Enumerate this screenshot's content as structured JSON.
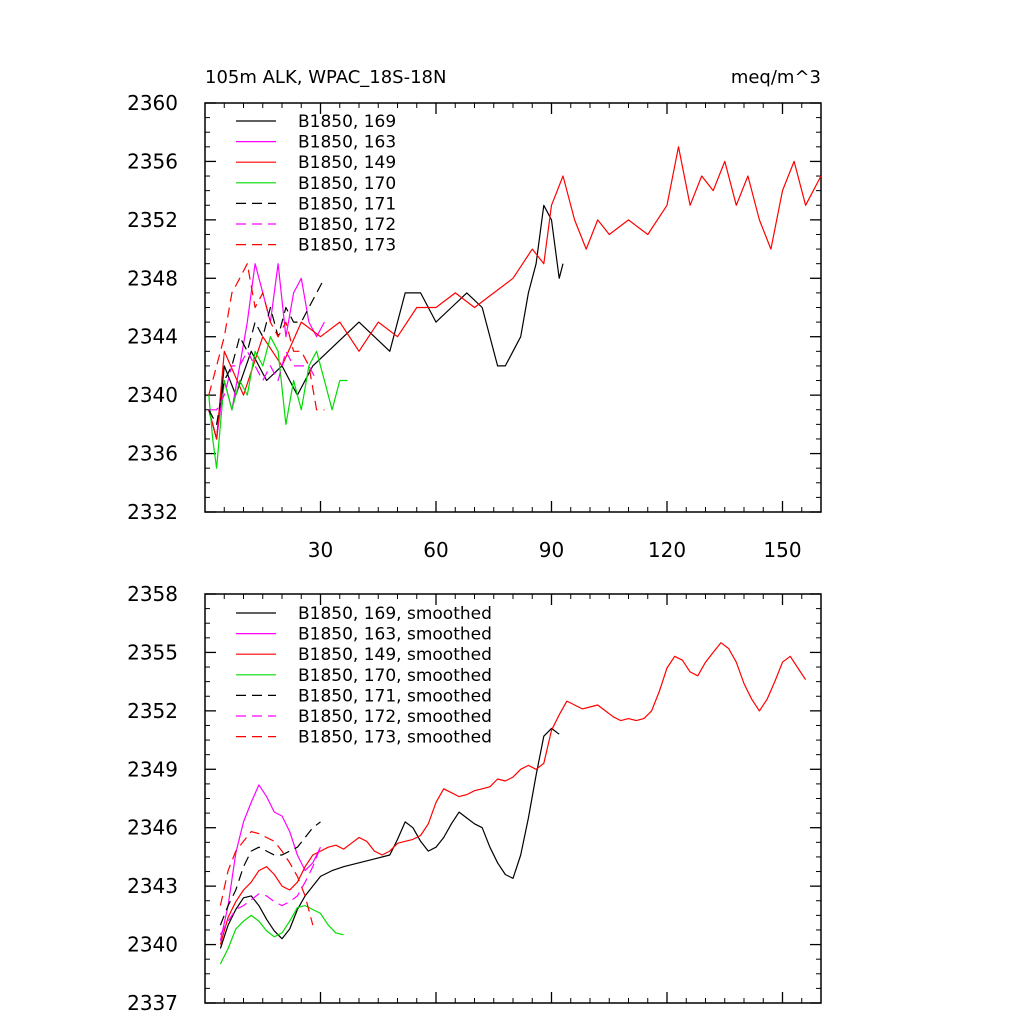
{
  "chart_data": [
    {
      "type": "line",
      "title_left": "105m ALK, WPAC_18S-18N",
      "title_right": "meq/m^3",
      "xlabel": "",
      "ylabel": "",
      "xlim": [
        0,
        160
      ],
      "ylim": [
        2332,
        2360
      ],
      "xticks": [
        30,
        60,
        90,
        120,
        150
      ],
      "xtick_labels": [
        "30",
        "60",
        "90",
        "120",
        "150"
      ],
      "yticks": [
        2332,
        2336,
        2340,
        2344,
        2348,
        2352,
        2356,
        2360
      ],
      "ytick_labels": [
        "2332",
        "2336",
        "2340",
        "2344",
        "2348",
        "2352",
        "2356",
        "2360"
      ],
      "grid": false,
      "legend_position": "top-left",
      "series": [
        {
          "name": "B1850, 169",
          "color": "#000000",
          "dash": "solid",
          "x": [
            1,
            3,
            5,
            8,
            12,
            16,
            20,
            24,
            28,
            32,
            36,
            40,
            44,
            48,
            52,
            56,
            60,
            64,
            68,
            72,
            76,
            78,
            80,
            82,
            84,
            86,
            88,
            90,
            92,
            93
          ],
          "y": [
            2339,
            2337,
            2342,
            2340,
            2343,
            2341,
            2342,
            2340,
            2342,
            2343,
            2344,
            2345,
            2344,
            2343,
            2347,
            2347,
            2345,
            2346,
            2347,
            2346,
            2342,
            2342,
            2343,
            2344,
            2347,
            2349,
            2353,
            2352,
            2348,
            2349
          ]
        },
        {
          "name": "B1850, 163",
          "color": "#ff00ff",
          "dash": "solid",
          "x": [
            1,
            3,
            5,
            7,
            9,
            11,
            13,
            15,
            17,
            19,
            21,
            23,
            25,
            27,
            29,
            31
          ],
          "y": [
            2339,
            2337,
            2341,
            2339,
            2342,
            2345,
            2349,
            2347,
            2345,
            2349,
            2344,
            2347,
            2348,
            2345,
            2344,
            2345
          ]
        },
        {
          "name": "B1850, 149",
          "color": "#ff0000",
          "dash": "solid",
          "x": [
            1,
            3,
            5,
            10,
            15,
            20,
            25,
            30,
            35,
            40,
            45,
            50,
            55,
            60,
            65,
            70,
            75,
            80,
            85,
            88,
            90,
            93,
            96,
            99,
            102,
            105,
            110,
            115,
            120,
            123,
            126,
            129,
            132,
            135,
            138,
            141,
            144,
            147,
            150,
            153,
            156,
            160
          ],
          "y": [
            2339,
            2337,
            2343,
            2340,
            2344,
            2342,
            2345,
            2344,
            2345,
            2343,
            2345,
            2344,
            2346,
            2346,
            2347,
            2346,
            2347,
            2348,
            2350,
            2349,
            2353,
            2355,
            2352,
            2350,
            2352,
            2351,
            2352,
            2351,
            2353,
            2357,
            2353,
            2355,
            2354,
            2356,
            2353,
            2355,
            2352,
            2350,
            2354,
            2356,
            2353,
            2355
          ]
        },
        {
          "name": "B1850, 170",
          "color": "#00dd00",
          "dash": "solid",
          "x": [
            1,
            2,
            3,
            5,
            7,
            9,
            11,
            13,
            15,
            17,
            19,
            21,
            23,
            25,
            27,
            29,
            31,
            33,
            35,
            37
          ],
          "y": [
            2340,
            2337,
            2335,
            2341,
            2339,
            2341,
            2340,
            2343,
            2342,
            2344,
            2343,
            2338,
            2341,
            2339,
            2342,
            2343,
            2341,
            2339,
            2341,
            2341
          ]
        },
        {
          "name": "B1850, 171",
          "color": "#000000",
          "dash": "dashed",
          "x": [
            1,
            3,
            5,
            7,
            9,
            11,
            13,
            15,
            17,
            19,
            21,
            23,
            25,
            27,
            29,
            31
          ],
          "y": [
            2339,
            2338,
            2341,
            2342,
            2344,
            2343,
            2345,
            2344,
            2346,
            2344,
            2346,
            2345,
            2345,
            2346,
            2347,
            2348
          ]
        },
        {
          "name": "B1850, 172",
          "color": "#ff00ff",
          "dash": "dashed",
          "x": [
            1,
            3,
            5,
            7,
            9,
            11,
            13,
            15,
            17,
            19,
            21,
            23,
            25,
            27,
            29
          ],
          "y": [
            2339,
            2339,
            2340,
            2342,
            2342,
            2343,
            2342,
            2341,
            2342,
            2341,
            2343,
            2342,
            2342,
            2342,
            2341
          ]
        },
        {
          "name": "B1850, 173",
          "color": "#ff0000",
          "dash": "dashed",
          "x": [
            1,
            3,
            5,
            7,
            9,
            11,
            13,
            15,
            17,
            19,
            21,
            23,
            25,
            27,
            29,
            31
          ],
          "y": [
            2340,
            2342,
            2344,
            2347,
            2348,
            2349,
            2346,
            2347,
            2345,
            2344,
            2345,
            2343,
            2343,
            2342,
            2339,
            2339
          ]
        }
      ]
    },
    {
      "type": "line",
      "xlabel": "",
      "ylabel": "",
      "xlim": [
        0,
        160
      ],
      "ylim": [
        2337,
        2358
      ],
      "xticks": [
        30,
        60,
        90,
        120,
        150
      ],
      "yticks": [
        2337,
        2340,
        2343,
        2346,
        2349,
        2352,
        2355,
        2358
      ],
      "ytick_labels": [
        "2337",
        "2340",
        "2343",
        "2346",
        "2349",
        "2352",
        "2355",
        "2358"
      ],
      "grid": false,
      "legend_position": "top-left",
      "series": [
        {
          "name": "B1850, 169, smoothed",
          "color": "#000000",
          "dash": "solid",
          "x": [
            4,
            6,
            8,
            10,
            12,
            14,
            16,
            18,
            20,
            22,
            24,
            26,
            28,
            30,
            33,
            36,
            40,
            44,
            48,
            50,
            52,
            54,
            56,
            58,
            60,
            62,
            64,
            66,
            68,
            70,
            72,
            74,
            76,
            78,
            80,
            82,
            84,
            86,
            88,
            90,
            92
          ],
          "y": [
            2339.8,
            2341.0,
            2341.8,
            2342.4,
            2342.5,
            2342.0,
            2341.3,
            2340.7,
            2340.3,
            2340.8,
            2341.8,
            2342.5,
            2343.0,
            2343.5,
            2343.8,
            2344.0,
            2344.2,
            2344.4,
            2344.6,
            2345.4,
            2346.3,
            2346.0,
            2345.3,
            2344.8,
            2345.0,
            2345.5,
            2346.2,
            2346.8,
            2346.5,
            2346.2,
            2346.0,
            2345.0,
            2344.2,
            2343.6,
            2343.4,
            2344.6,
            2346.5,
            2348.7,
            2350.7,
            2351.1,
            2350.8
          ]
        },
        {
          "name": "B1850, 163, smoothed",
          "color": "#ff00ff",
          "dash": "solid",
          "x": [
            4,
            6,
            8,
            10,
            12,
            14,
            16,
            18,
            20,
            22,
            24,
            26,
            28,
            30
          ],
          "y": [
            2340.2,
            2342.0,
            2344.7,
            2346.3,
            2347.3,
            2348.2,
            2347.6,
            2346.8,
            2346.6,
            2345.8,
            2344.6,
            2343.8,
            2344.2,
            2345.0
          ]
        },
        {
          "name": "B1850, 149, smoothed",
          "color": "#ff0000",
          "dash": "solid",
          "x": [
            4,
            6,
            8,
            10,
            12,
            14,
            16,
            18,
            20,
            22,
            24,
            26,
            28,
            30,
            32,
            34,
            36,
            38,
            40,
            42,
            44,
            46,
            48,
            50,
            52,
            54,
            56,
            58,
            60,
            62,
            64,
            66,
            68,
            70,
            72,
            74,
            76,
            78,
            80,
            82,
            84,
            86,
            88,
            90,
            92,
            94,
            96,
            98,
            100,
            102,
            104,
            106,
            108,
            110,
            112,
            114,
            116,
            118,
            120,
            122,
            124,
            126,
            128,
            130,
            132,
            134,
            136,
            138,
            140,
            142,
            144,
            146,
            148,
            150,
            152,
            154,
            156
          ],
          "y": [
            2340.0,
            2341.4,
            2342.2,
            2342.8,
            2343.2,
            2343.8,
            2344.0,
            2343.6,
            2343.0,
            2342.8,
            2343.2,
            2344.0,
            2344.6,
            2344.8,
            2345.0,
            2345.1,
            2344.9,
            2345.2,
            2345.5,
            2345.3,
            2344.8,
            2344.6,
            2344.8,
            2345.2,
            2345.3,
            2345.4,
            2345.6,
            2346.2,
            2347.3,
            2348.0,
            2347.8,
            2347.6,
            2347.7,
            2347.9,
            2348.0,
            2348.1,
            2348.5,
            2348.4,
            2348.6,
            2349.0,
            2349.2,
            2349.0,
            2349.3,
            2351.0,
            2351.8,
            2352.5,
            2352.3,
            2352.1,
            2352.2,
            2352.3,
            2352.0,
            2351.7,
            2351.5,
            2351.6,
            2351.5,
            2351.6,
            2352.0,
            2353.0,
            2354.2,
            2354.8,
            2354.6,
            2354.0,
            2353.8,
            2354.5,
            2355.0,
            2355.5,
            2355.2,
            2354.5,
            2353.4,
            2352.6,
            2352.0,
            2352.6,
            2353.5,
            2354.5,
            2354.8,
            2354.2,
            2353.6
          ]
        },
        {
          "name": "B1850, 170, smoothed",
          "color": "#00dd00",
          "dash": "solid",
          "x": [
            4,
            6,
            8,
            10,
            12,
            14,
            16,
            18,
            20,
            22,
            24,
            26,
            28,
            30,
            32,
            34,
            36
          ],
          "y": [
            2339.0,
            2339.8,
            2340.8,
            2341.2,
            2341.5,
            2341.2,
            2340.7,
            2340.4,
            2340.6,
            2341.2,
            2341.9,
            2342.0,
            2341.8,
            2341.6,
            2341.0,
            2340.6,
            2340.5
          ]
        },
        {
          "name": "B1850, 171, smoothed",
          "color": "#000000",
          "dash": "dashed",
          "x": [
            4,
            6,
            8,
            10,
            12,
            14,
            16,
            18,
            20,
            22,
            24,
            26,
            28,
            30
          ],
          "y": [
            2341.0,
            2342.0,
            2342.8,
            2344.0,
            2344.8,
            2345.0,
            2344.8,
            2344.6,
            2344.6,
            2344.8,
            2345.0,
            2345.5,
            2346.0,
            2346.3
          ]
        },
        {
          "name": "B1850, 172, smoothed",
          "color": "#ff00ff",
          "dash": "dashed",
          "x": [
            4,
            6,
            8,
            10,
            12,
            14,
            16,
            18,
            20,
            22,
            24,
            26,
            28,
            30
          ],
          "y": [
            2340.5,
            2341.2,
            2341.8,
            2342.0,
            2342.3,
            2342.6,
            2342.5,
            2342.2,
            2342.0,
            2342.2,
            2342.5,
            2343.2,
            2344.0,
            2345.0
          ]
        },
        {
          "name": "B1850, 173, smoothed",
          "color": "#ff0000",
          "dash": "dashed",
          "x": [
            4,
            6,
            8,
            10,
            12,
            14,
            16,
            18,
            20,
            22,
            24,
            26,
            28
          ],
          "y": [
            2342.0,
            2343.8,
            2344.8,
            2345.3,
            2345.8,
            2345.7,
            2345.5,
            2345.3,
            2344.8,
            2344.2,
            2343.5,
            2342.5,
            2341.0
          ]
        }
      ]
    }
  ]
}
